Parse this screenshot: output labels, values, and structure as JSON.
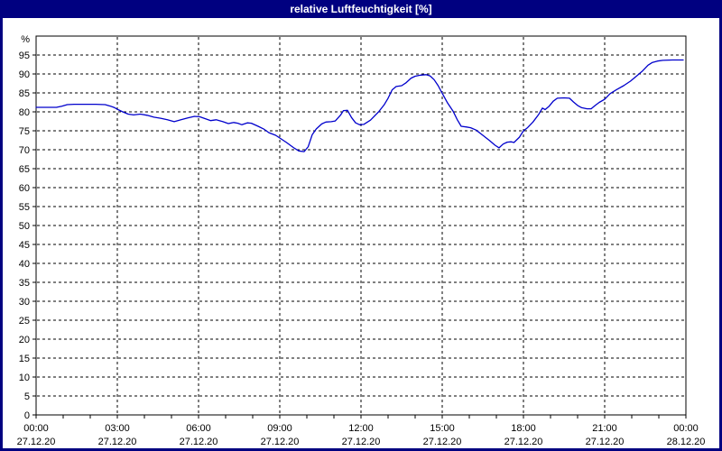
{
  "window": {
    "title": "relative Luftfeuchtigkeit [%]"
  },
  "colors": {
    "titlebar_bg": "#000080",
    "window_border": "#000080",
    "title_text": "#ffffff",
    "plot_bg": "#ffffff",
    "grid": "#000000",
    "axis_text": "#000000",
    "line": "#0000cc"
  },
  "chart_data": {
    "type": "line",
    "title": "relative Luftfeuchtigkeit [%]",
    "xlabel": "",
    "ylabel": "%",
    "ylim": [
      0,
      100
    ],
    "xlim_hours": [
      0,
      24
    ],
    "grid": "dashed",
    "legend": "none",
    "y_ticks": [
      0,
      5,
      10,
      15,
      20,
      25,
      30,
      35,
      40,
      45,
      50,
      55,
      60,
      65,
      70,
      75,
      80,
      85,
      90,
      95
    ],
    "y_gridlines": [
      5,
      10,
      15,
      20,
      25,
      30,
      35,
      40,
      45,
      50,
      55,
      60,
      65,
      70,
      75,
      80,
      85,
      90,
      95
    ],
    "x_gridlines_hours": [
      3,
      6,
      9,
      12,
      15,
      18,
      21
    ],
    "x_minor_ticks_hours": [
      0,
      1,
      2,
      3,
      4,
      5,
      6,
      7,
      8,
      9,
      10,
      11,
      12,
      13,
      14,
      15,
      16,
      17,
      18,
      19,
      20,
      21,
      22,
      23,
      24
    ],
    "x_ticks": [
      {
        "hour": 0,
        "time": "00:00",
        "date": "27.12.20"
      },
      {
        "hour": 3,
        "time": "03:00",
        "date": "27.12.20"
      },
      {
        "hour": 6,
        "time": "06:00",
        "date": "27.12.20"
      },
      {
        "hour": 9,
        "time": "09:00",
        "date": "27.12.20"
      },
      {
        "hour": 12,
        "time": "12:00",
        "date": "27.12.20"
      },
      {
        "hour": 15,
        "time": "15:00",
        "date": "27.12.20"
      },
      {
        "hour": 18,
        "time": "18:00",
        "date": "27.12.20"
      },
      {
        "hour": 21,
        "time": "21:00",
        "date": "27.12.20"
      },
      {
        "hour": 24,
        "time": "00:00",
        "date": "28.12.20"
      }
    ],
    "series": [
      {
        "name": "relative Luftfeuchtigkeit [%]",
        "color": "#0000cc",
        "points": [
          [
            0.0,
            81.2
          ],
          [
            0.4,
            81.2
          ],
          [
            0.75,
            81.2
          ],
          [
            0.95,
            81.5
          ],
          [
            1.15,
            81.9
          ],
          [
            1.4,
            82.0
          ],
          [
            1.8,
            82.0
          ],
          [
            2.2,
            82.0
          ],
          [
            2.55,
            81.9
          ],
          [
            2.75,
            81.5
          ],
          [
            2.9,
            81.1
          ],
          [
            3.05,
            80.5
          ],
          [
            3.2,
            80.0
          ],
          [
            3.4,
            79.4
          ],
          [
            3.6,
            79.2
          ],
          [
            3.85,
            79.4
          ],
          [
            4.1,
            79.1
          ],
          [
            4.35,
            78.6
          ],
          [
            4.6,
            78.3
          ],
          [
            4.85,
            77.9
          ],
          [
            5.1,
            77.4
          ],
          [
            5.35,
            77.9
          ],
          [
            5.6,
            78.4
          ],
          [
            5.85,
            78.8
          ],
          [
            6.05,
            78.7
          ],
          [
            6.25,
            78.2
          ],
          [
            6.45,
            77.7
          ],
          [
            6.65,
            77.9
          ],
          [
            6.9,
            77.4
          ],
          [
            7.1,
            76.9
          ],
          [
            7.3,
            77.2
          ],
          [
            7.45,
            77.0
          ],
          [
            7.6,
            76.6
          ],
          [
            7.8,
            77.1
          ],
          [
            7.95,
            77.0
          ],
          [
            8.2,
            76.2
          ],
          [
            8.4,
            75.5
          ],
          [
            8.6,
            74.5
          ],
          [
            8.85,
            73.8
          ],
          [
            9.0,
            73.1
          ],
          [
            9.25,
            71.9
          ],
          [
            9.5,
            70.6
          ],
          [
            9.7,
            69.7
          ],
          [
            9.9,
            69.5
          ],
          [
            10.05,
            70.8
          ],
          [
            10.2,
            74.0
          ],
          [
            10.35,
            75.5
          ],
          [
            10.55,
            76.8
          ],
          [
            10.7,
            77.3
          ],
          [
            10.9,
            77.4
          ],
          [
            11.05,
            77.6
          ],
          [
            11.25,
            79.2
          ],
          [
            11.35,
            80.3
          ],
          [
            11.5,
            80.4
          ],
          [
            11.65,
            78.5
          ],
          [
            11.8,
            77.1
          ],
          [
            11.95,
            76.6
          ],
          [
            12.1,
            76.7
          ],
          [
            12.35,
            77.8
          ],
          [
            12.65,
            80.0
          ],
          [
            12.85,
            81.8
          ],
          [
            13.0,
            83.6
          ],
          [
            13.15,
            85.8
          ],
          [
            13.3,
            86.7
          ],
          [
            13.5,
            86.9
          ],
          [
            13.65,
            87.6
          ],
          [
            13.85,
            88.9
          ],
          [
            14.0,
            89.4
          ],
          [
            14.2,
            89.7
          ],
          [
            14.4,
            89.8
          ],
          [
            14.55,
            89.5
          ],
          [
            14.7,
            88.5
          ],
          [
            14.85,
            86.9
          ],
          [
            15.0,
            84.9
          ],
          [
            15.2,
            82.3
          ],
          [
            15.4,
            80.2
          ],
          [
            15.55,
            78.0
          ],
          [
            15.7,
            76.2
          ],
          [
            15.9,
            76.0
          ],
          [
            16.05,
            75.8
          ],
          [
            16.25,
            75.2
          ],
          [
            16.5,
            73.8
          ],
          [
            16.75,
            72.4
          ],
          [
            16.95,
            71.2
          ],
          [
            17.1,
            70.5
          ],
          [
            17.25,
            71.5
          ],
          [
            17.4,
            72.0
          ],
          [
            17.55,
            72.1
          ],
          [
            17.65,
            71.9
          ],
          [
            17.85,
            73.3
          ],
          [
            18.0,
            75.0
          ],
          [
            18.15,
            75.8
          ],
          [
            18.35,
            77.3
          ],
          [
            18.55,
            79.2
          ],
          [
            18.7,
            81.0
          ],
          [
            18.8,
            80.6
          ],
          [
            18.95,
            81.5
          ],
          [
            19.1,
            82.8
          ],
          [
            19.25,
            83.6
          ],
          [
            19.5,
            83.7
          ],
          [
            19.7,
            83.6
          ],
          [
            19.85,
            82.6
          ],
          [
            20.0,
            81.7
          ],
          [
            20.15,
            81.1
          ],
          [
            20.35,
            80.8
          ],
          [
            20.5,
            80.8
          ],
          [
            20.65,
            81.7
          ],
          [
            20.8,
            82.5
          ],
          [
            21.0,
            83.3
          ],
          [
            21.2,
            84.8
          ],
          [
            21.45,
            85.9
          ],
          [
            21.7,
            86.9
          ],
          [
            21.95,
            88.1
          ],
          [
            22.2,
            89.6
          ],
          [
            22.4,
            90.8
          ],
          [
            22.6,
            92.3
          ],
          [
            22.75,
            93.0
          ],
          [
            22.95,
            93.4
          ],
          [
            23.15,
            93.6
          ],
          [
            23.5,
            93.7
          ],
          [
            23.9,
            93.7
          ]
        ]
      }
    ]
  }
}
